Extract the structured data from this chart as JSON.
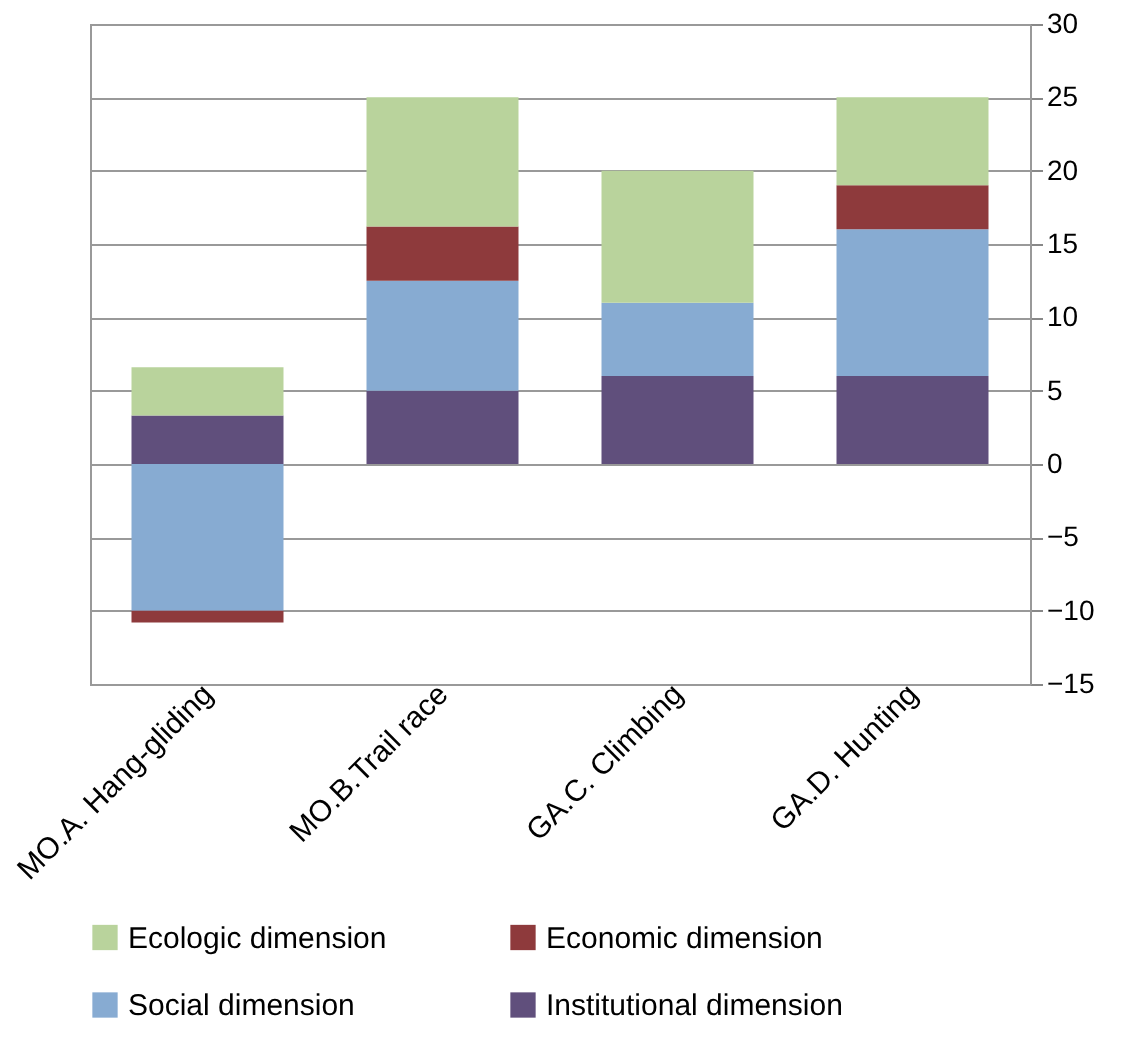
{
  "chart_data": {
    "type": "bar",
    "stacked": true,
    "categories": [
      "MO.A. Hang-gliding",
      "MO.B.Trail race",
      "GA.C. Climbing",
      "GA.D. Hunting"
    ],
    "series": [
      {
        "name": "Institutional dimension",
        "color": "#604f7c",
        "values": [
          3.3,
          5,
          6,
          6
        ]
      },
      {
        "name": "Social dimension",
        "color": "#87abd2",
        "values": [
          -10,
          7.5,
          5,
          10
        ]
      },
      {
        "name": "Economic dimension",
        "color": "#8e3a3c",
        "values": [
          -0.8,
          3.7,
          0,
          3
        ]
      },
      {
        "name": "Ecologic dimension",
        "color": "#b9d39c",
        "values": [
          3.3,
          8.8,
          9,
          6
        ]
      }
    ],
    "ylim": [
      -15,
      30
    ],
    "yticks": [
      -15,
      -10,
      -5,
      0,
      5,
      10,
      15,
      20,
      25,
      30
    ],
    "grid": "y",
    "legend": "bottom"
  }
}
